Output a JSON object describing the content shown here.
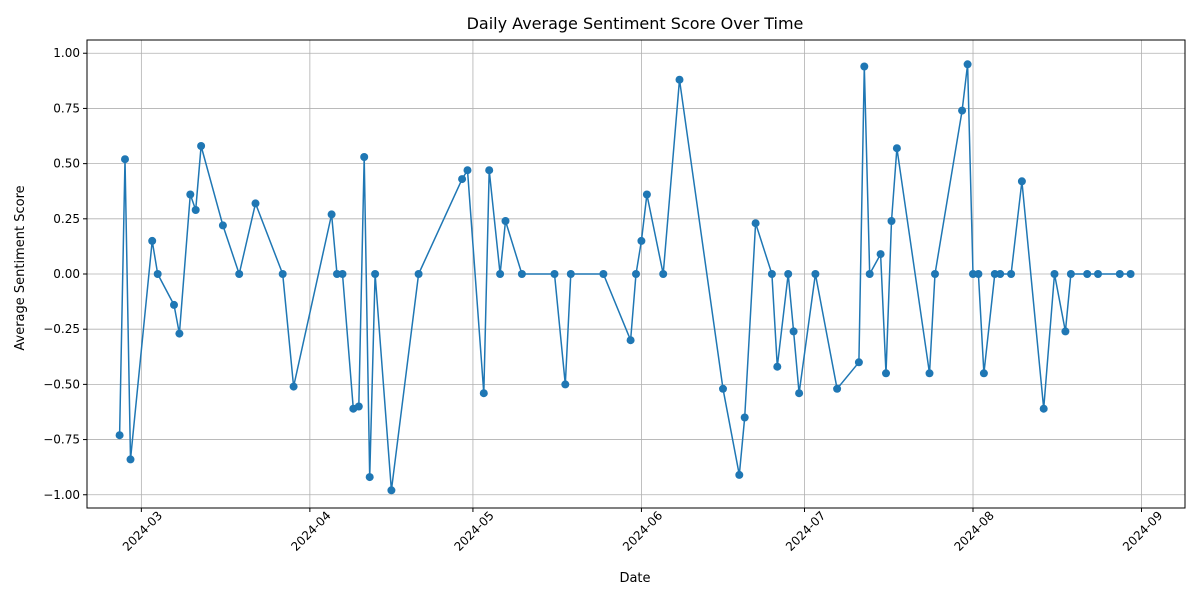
{
  "chart_data": {
    "type": "line",
    "title": "Daily Average Sentiment Score Over Time",
    "xlabel": "Date",
    "ylabel": "Average Sentiment Score",
    "xlim": [
      "2024-02-20",
      "2024-09-09"
    ],
    "ylim": [
      -1.06,
      1.06
    ],
    "x_ticks": [
      "2024-03-01",
      "2024-04-01",
      "2024-05-01",
      "2024-06-01",
      "2024-07-01",
      "2024-08-01",
      "2024-09-01"
    ],
    "x_tick_labels": [
      "2024-03",
      "2024-04",
      "2024-05",
      "2024-06",
      "2024-07",
      "2024-08",
      "2024-09"
    ],
    "y_ticks": [
      -1.0,
      -0.75,
      -0.5,
      -0.25,
      0.0,
      0.25,
      0.5,
      0.75,
      1.0
    ],
    "y_tick_labels": [
      "−1.00",
      "−0.75",
      "−0.50",
      "−0.25",
      "0.00",
      "0.25",
      "0.50",
      "0.75",
      "1.00"
    ],
    "grid": true,
    "color": "#1f77b4",
    "series": [
      {
        "x": [
          "2024-02-26",
          "2024-02-27",
          "2024-02-28",
          "2024-03-03",
          "2024-03-04",
          "2024-03-07",
          "2024-03-08",
          "2024-03-10",
          "2024-03-11",
          "2024-03-12",
          "2024-03-16",
          "2024-03-19",
          "2024-03-22",
          "2024-03-27",
          "2024-03-29",
          "2024-04-05",
          "2024-04-06",
          "2024-04-07",
          "2024-04-09",
          "2024-04-10",
          "2024-04-11",
          "2024-04-12",
          "2024-04-13",
          "2024-04-16",
          "2024-04-21",
          "2024-04-29",
          "2024-04-30",
          "2024-05-03",
          "2024-05-04",
          "2024-05-06",
          "2024-05-07",
          "2024-05-10",
          "2024-05-16",
          "2024-05-18",
          "2024-05-19",
          "2024-05-25",
          "2024-05-30",
          "2024-05-31",
          "2024-06-01",
          "2024-06-02",
          "2024-06-05",
          "2024-06-08",
          "2024-06-16",
          "2024-06-19",
          "2024-06-20",
          "2024-06-22",
          "2024-06-25",
          "2024-06-26",
          "2024-06-28",
          "2024-06-29",
          "2024-06-30",
          "2024-07-03",
          "2024-07-07",
          "2024-07-11",
          "2024-07-12",
          "2024-07-13",
          "2024-07-15",
          "2024-07-16",
          "2024-07-17",
          "2024-07-18",
          "2024-07-24",
          "2024-07-25",
          "2024-07-30",
          "2024-07-31",
          "2024-08-01",
          "2024-08-02",
          "2024-08-03",
          "2024-08-05",
          "2024-08-06",
          "2024-08-08",
          "2024-08-10",
          "2024-08-14",
          "2024-08-16",
          "2024-08-18",
          "2024-08-19",
          "2024-08-22",
          "2024-08-24",
          "2024-08-28",
          "2024-08-30"
        ],
        "y": [
          -0.73,
          0.52,
          -0.84,
          0.15,
          0.0,
          -0.14,
          -0.27,
          0.36,
          0.29,
          0.58,
          0.22,
          0.0,
          0.32,
          0.0,
          -0.51,
          0.27,
          0.0,
          0.0,
          -0.61,
          -0.6,
          0.53,
          -0.92,
          0.0,
          -0.98,
          0.0,
          0.43,
          0.47,
          -0.54,
          0.47,
          0.0,
          0.24,
          0.0,
          0.0,
          -0.5,
          0.0,
          0.0,
          -0.3,
          0.0,
          0.15,
          0.36,
          0.0,
          0.88,
          -0.52,
          -0.91,
          -0.65,
          0.23,
          0.0,
          -0.42,
          0.0,
          -0.26,
          -0.54,
          0.0,
          -0.52,
          -0.4,
          0.94,
          0.0,
          0.09,
          -0.45,
          0.24,
          0.57,
          -0.45,
          0.0,
          0.74,
          0.95,
          0.0,
          0.0,
          -0.45,
          0.0,
          0.0,
          0.0,
          0.42,
          -0.61,
          0.0,
          -0.26,
          0.0,
          0.0,
          0.0,
          0.0,
          0.0
        ]
      }
    ]
  }
}
